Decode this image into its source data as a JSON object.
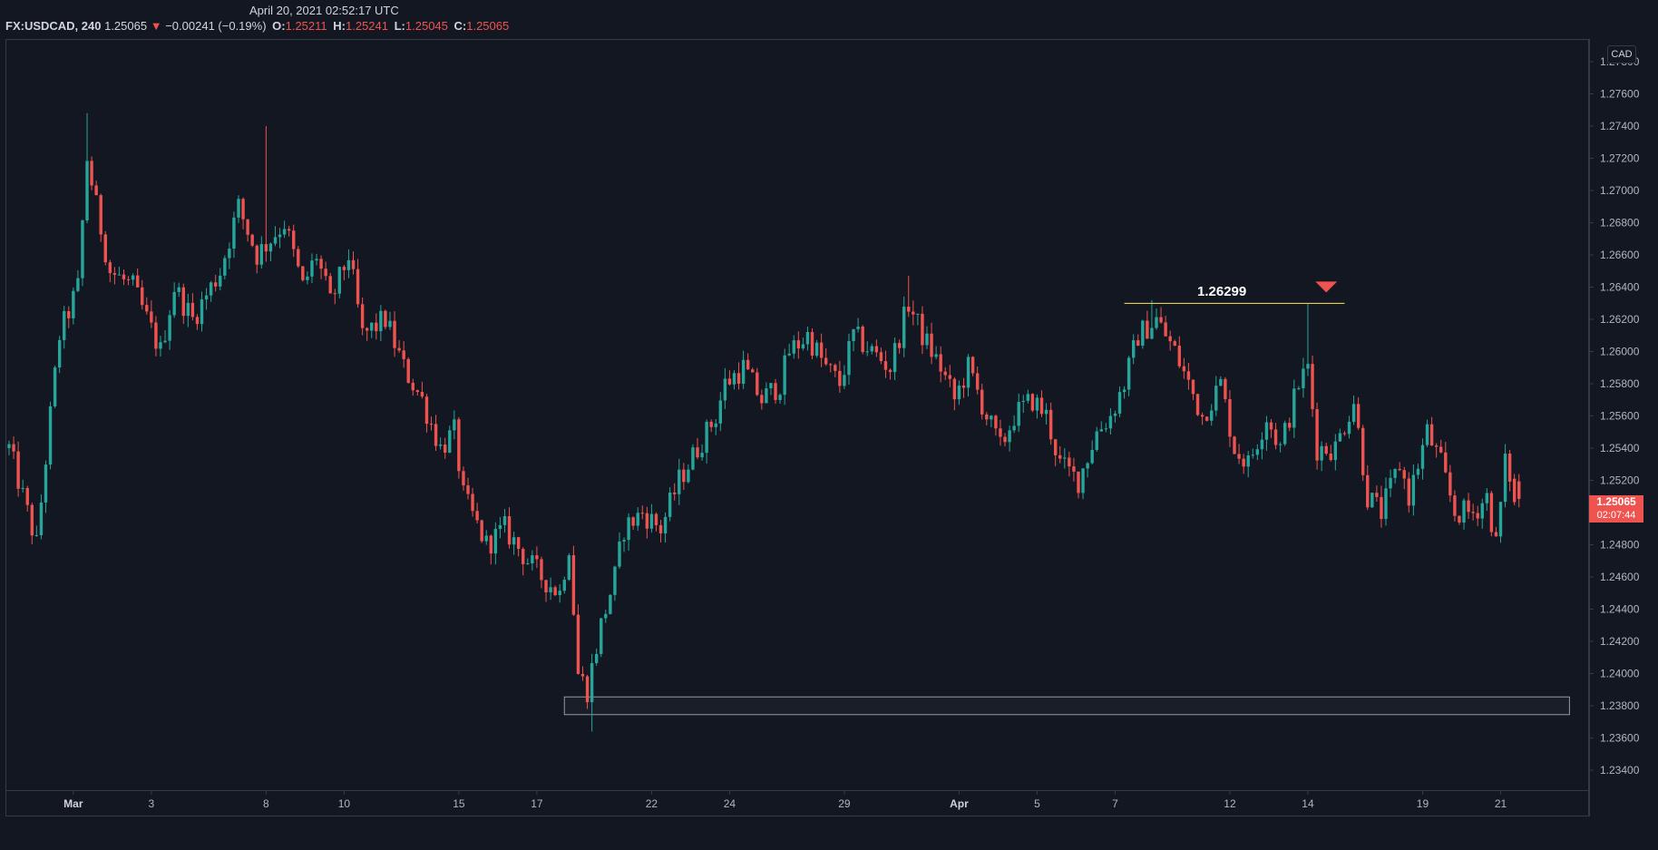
{
  "header": {
    "timestamp": "April 20, 2021 02:52:17 UTC",
    "symbol": "FX:USDCAD, 240",
    "last": "1.25065",
    "change_arrow": "▼",
    "change": "−0.00241 (−0.19%)",
    "o_label": "O:",
    "o_value": "1.25211",
    "h_label": "H:",
    "h_value": "1.25241",
    "l_label": "L:",
    "l_value": "1.25045",
    "c_label": "C:",
    "c_value": "1.25065"
  },
  "price_axis": {
    "currency": "CAD",
    "current_price": "1.25065",
    "countdown": "02:07:44"
  },
  "colors": {
    "background": "#131722",
    "up": "#26a69a",
    "down": "#ef5350",
    "annotation_line": "#e6d04b",
    "zone_border": "#9598a1"
  },
  "annotation": {
    "level_label": "1.26299",
    "marker_icon": "down-triangle-icon"
  },
  "chart_data": {
    "type": "candlestick",
    "title": "",
    "ylim": [
      1.232,
      1.279
    ],
    "y_ticks": [
      "1.23400",
      "1.23600",
      "1.23800",
      "1.24000",
      "1.24200",
      "1.24400",
      "1.24600",
      "1.24800",
      "1.25000",
      "1.25200",
      "1.25400",
      "1.25600",
      "1.25800",
      "1.26000",
      "1.26200",
      "1.26400",
      "1.26600",
      "1.26800",
      "1.27000",
      "1.27200",
      "1.27400",
      "1.27600",
      "1.27800"
    ],
    "x_ticks": [
      {
        "label": "Mar",
        "bar": 14,
        "bold": true
      },
      {
        "label": "3",
        "bar": 31
      },
      {
        "label": "8",
        "bar": 56
      },
      {
        "label": "10",
        "bar": 73
      },
      {
        "label": "15",
        "bar": 98
      },
      {
        "label": "17",
        "bar": 115
      },
      {
        "label": "22",
        "bar": 140
      },
      {
        "label": "24",
        "bar": 157
      },
      {
        "label": "29",
        "bar": 182
      },
      {
        "label": "Apr",
        "bar": 207,
        "bold": true
      },
      {
        "label": "5",
        "bar": 224
      },
      {
        "label": "7",
        "bar": 241
      },
      {
        "label": "12",
        "bar": 266
      },
      {
        "label": "14",
        "bar": 283
      },
      {
        "label": "19",
        "bar": 308
      },
      {
        "label": "21",
        "bar": 325
      }
    ],
    "anchors": [
      [
        0,
        1.254
      ],
      [
        3,
        1.251
      ],
      [
        6,
        1.248
      ],
      [
        9,
        1.256
      ],
      [
        11,
        1.261
      ],
      [
        15,
        1.264
      ],
      [
        17,
        1.272
      ],
      [
        19,
        1.269
      ],
      [
        22,
        1.265
      ],
      [
        27,
        1.264
      ],
      [
        30,
        1.262
      ],
      [
        33,
        1.26
      ],
      [
        36,
        1.264
      ],
      [
        40,
        1.262
      ],
      [
        46,
        1.265
      ],
      [
        50,
        1.269
      ],
      [
        54,
        1.266
      ],
      [
        60,
        1.268
      ],
      [
        64,
        1.264
      ],
      [
        67,
        1.266
      ],
      [
        70,
        1.263
      ],
      [
        74,
        1.266
      ],
      [
        77,
        1.261
      ],
      [
        82,
        1.262
      ],
      [
        86,
        1.259
      ],
      [
        90,
        1.257
      ],
      [
        94,
        1.254
      ],
      [
        97,
        1.255
      ],
      [
        99,
        1.251
      ],
      [
        104,
        1.248
      ],
      [
        108,
        1.249
      ],
      [
        113,
        1.247
      ],
      [
        116,
        1.246
      ],
      [
        120,
        1.245
      ],
      [
        122,
        1.248
      ],
      [
        124,
        1.24
      ],
      [
        126,
        1.239
      ],
      [
        129,
        1.243
      ],
      [
        132,
        1.246
      ],
      [
        134,
        1.249
      ],
      [
        138,
        1.25
      ],
      [
        142,
        1.249
      ],
      [
        146,
        1.252
      ],
      [
        150,
        1.254
      ],
      [
        154,
        1.256
      ],
      [
        156,
        1.258
      ],
      [
        160,
        1.259
      ],
      [
        164,
        1.257
      ],
      [
        168,
        1.258
      ],
      [
        170,
        1.26
      ],
      [
        174,
        1.261
      ],
      [
        178,
        1.259
      ],
      [
        181,
        1.258
      ],
      [
        184,
        1.261
      ],
      [
        188,
        1.26
      ],
      [
        192,
        1.259
      ],
      [
        196,
        1.263
      ],
      [
        199,
        1.261
      ],
      [
        203,
        1.259
      ],
      [
        206,
        1.257
      ],
      [
        209,
        1.259
      ],
      [
        213,
        1.256
      ],
      [
        216,
        1.254
      ],
      [
        219,
        1.256
      ],
      [
        223,
        1.257
      ],
      [
        226,
        1.256
      ],
      [
        229,
        1.253
      ],
      [
        233,
        1.252
      ],
      [
        237,
        1.255
      ],
      [
        240,
        1.256
      ],
      [
        243,
        1.258
      ],
      [
        246,
        1.261
      ],
      [
        250,
        1.262
      ],
      [
        254,
        1.26
      ],
      [
        257,
        1.258
      ],
      [
        260,
        1.256
      ],
      [
        264,
        1.258
      ],
      [
        267,
        1.254
      ],
      [
        270,
        1.253
      ],
      [
        274,
        1.256
      ],
      [
        277,
        1.254
      ],
      [
        281,
        1.258
      ],
      [
        283,
        1.259
      ],
      [
        285,
        1.254
      ],
      [
        289,
        1.254
      ],
      [
        293,
        1.257
      ],
      [
        296,
        1.251
      ],
      [
        299,
        1.25
      ],
      [
        303,
        1.253
      ],
      [
        305,
        1.251
      ],
      [
        309,
        1.255
      ],
      [
        312,
        1.253
      ],
      [
        315,
        1.25
      ],
      [
        319,
        1.25
      ],
      [
        322,
        1.251
      ],
      [
        324,
        1.248
      ],
      [
        326,
        1.253
      ],
      [
        329,
        1.251
      ]
    ],
    "overrides": [
      {
        "i": 17,
        "h": 1.2748
      },
      {
        "i": 56,
        "h": 1.274
      },
      {
        "i": 127,
        "l": 1.2364
      },
      {
        "i": 126,
        "l": 1.2378
      },
      {
        "i": 249,
        "h": 1.2632
      },
      {
        "i": 283,
        "h": 1.263
      },
      {
        "i": 196,
        "h": 1.2647
      },
      {
        "i": 328,
        "o": 1.2521,
        "h": 1.2524,
        "l": 1.25045,
        "c": 1.25065
      }
    ],
    "last_bar": 329,
    "zone": {
      "from_bar": 121,
      "to_bar": 340,
      "y_top": 1.23855,
      "y_bottom": 1.23745
    },
    "resistance": {
      "price": 1.26299,
      "from_bar": 243,
      "to_bar": 291,
      "marker_bar": 287
    }
  }
}
